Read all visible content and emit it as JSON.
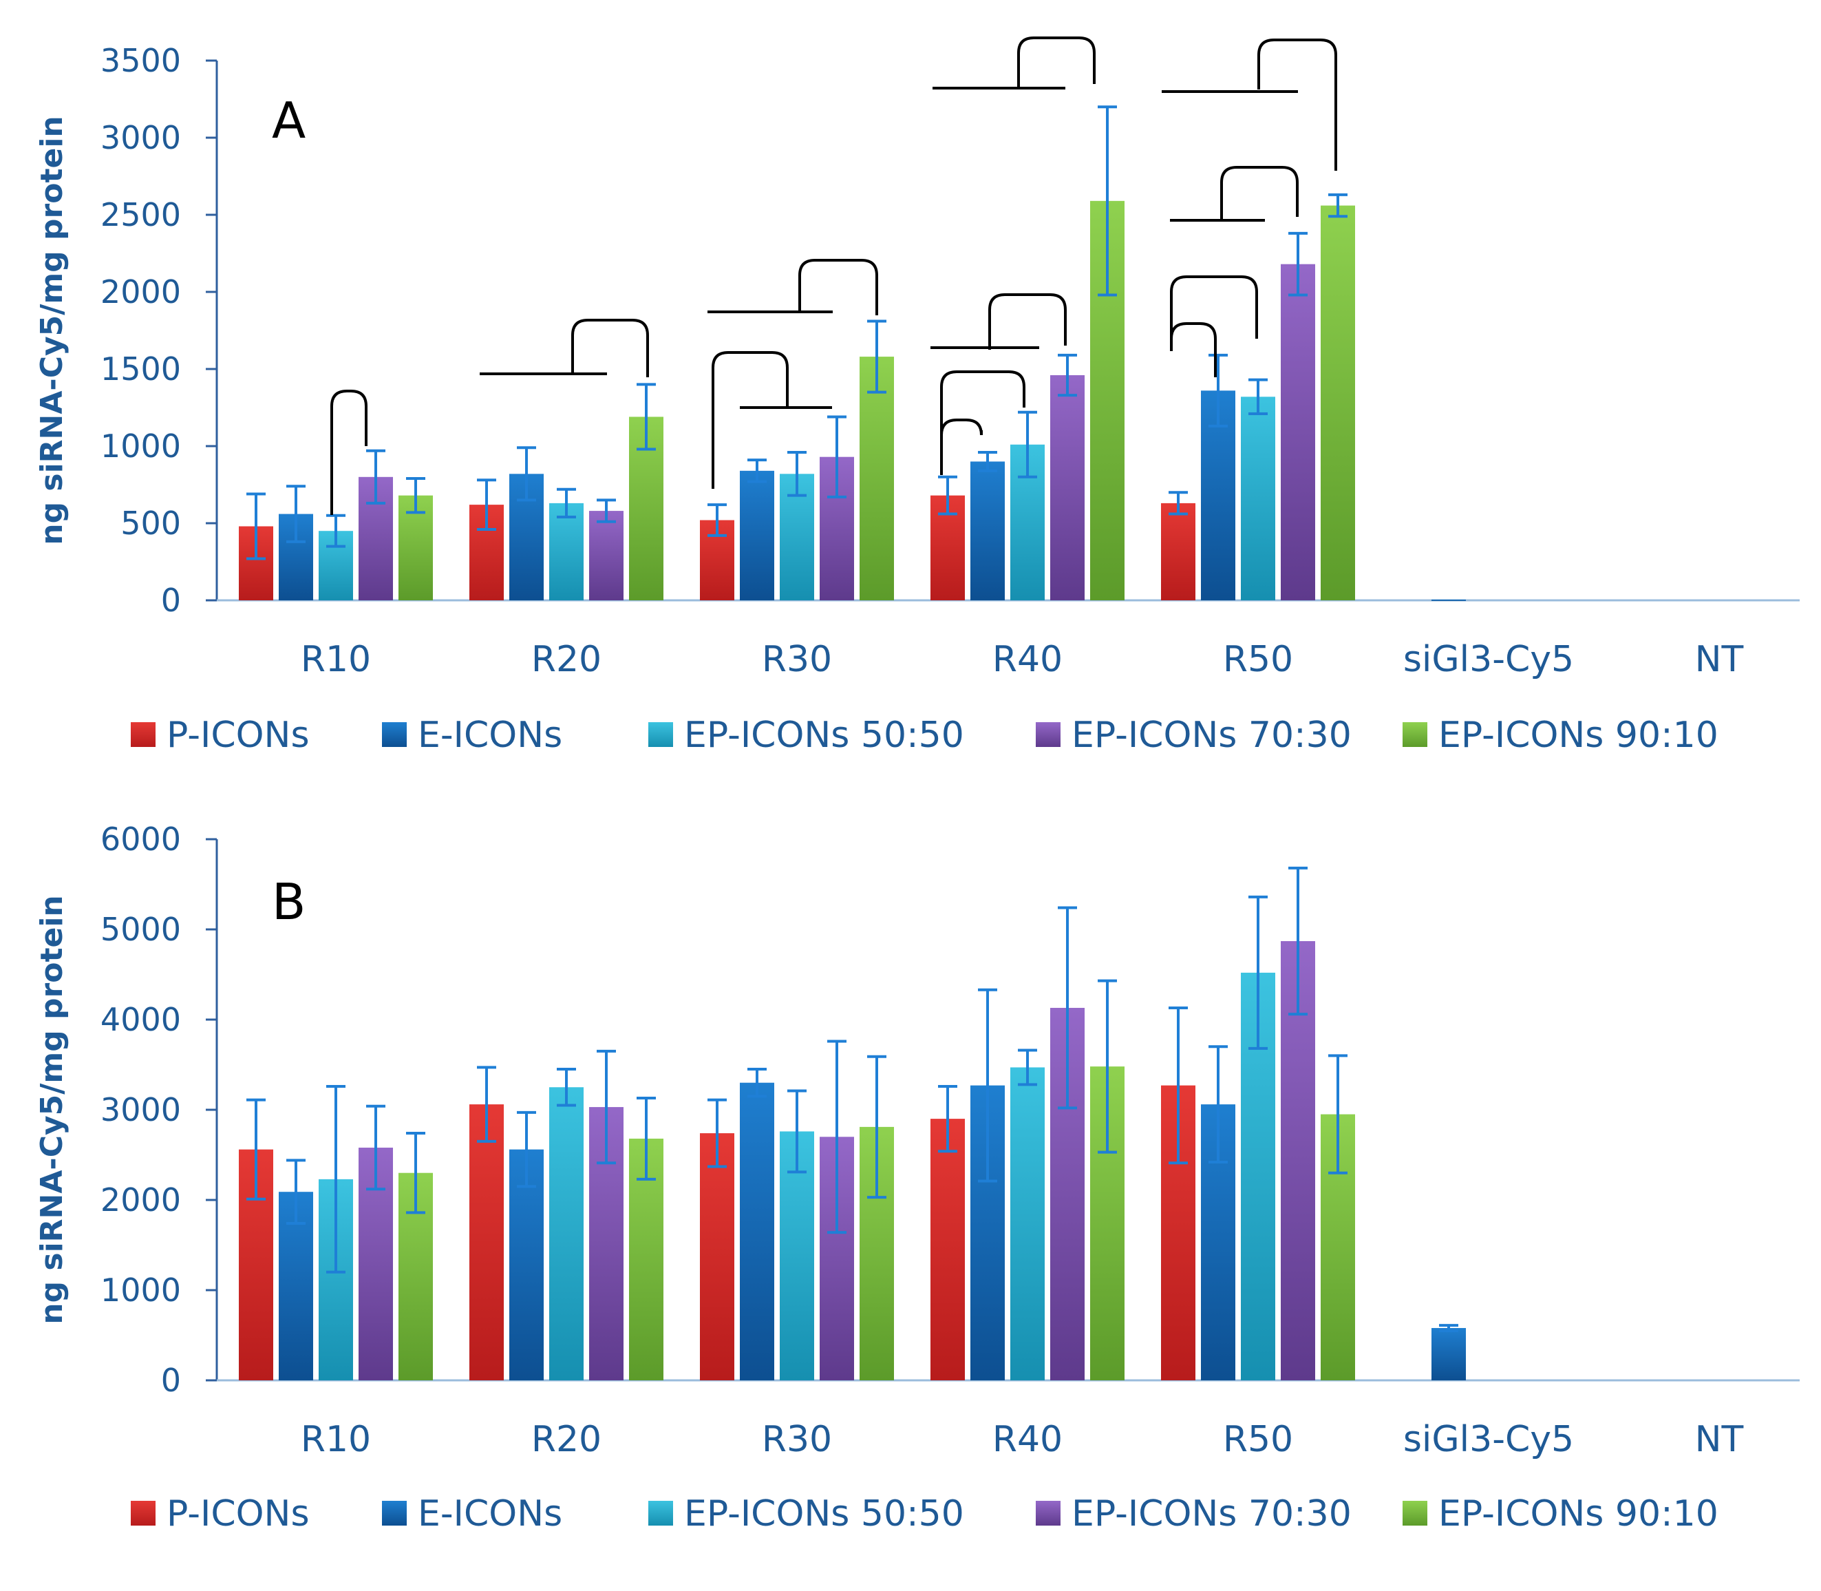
{
  "colors": {
    "text": "#1f5a96",
    "axis": "#2f5f9e",
    "baseline": "#9bbcdc",
    "error": "#1f7fd6",
    "bracket": "#000000",
    "series": {
      "P-ICONs": [
        "#e53935",
        "#b71c1c"
      ],
      "E-ICONs": [
        "#1f7fd0",
        "#0d4f91"
      ],
      "EP-ICONs 50:50": [
        "#3cc3e0",
        "#168fb0"
      ],
      "EP-ICONs 70:30": [
        "#9468c8",
        "#5e3a8c"
      ],
      "EP-ICONs 90:10": [
        "#8fd14f",
        "#5c9b2a"
      ]
    }
  },
  "chart_data": [
    {
      "type": "bar",
      "panel": "A",
      "ylabel": "ng siRNA-Cy5/mg protein",
      "ylim": [
        0,
        3500
      ],
      "yticks": [
        "0",
        "500",
        "1000",
        "1500",
        "2000",
        "2500",
        "3000",
        "3500"
      ],
      "categories": [
        "R10",
        "R20",
        "R30",
        "R40",
        "R50",
        "siGl3-Cy5",
        "NT"
      ],
      "series": [
        {
          "name": "P-ICONs",
          "values": [
            480,
            620,
            520,
            680,
            630,
            null,
            null
          ],
          "errors": [
            210,
            160,
            100,
            120,
            70,
            null,
            null
          ]
        },
        {
          "name": "E-ICONs",
          "values": [
            560,
            820,
            840,
            900,
            1360,
            5,
            null
          ],
          "errors": [
            180,
            170,
            70,
            60,
            230,
            null,
            null
          ]
        },
        {
          "name": "EP-ICONs 50:50",
          "values": [
            450,
            630,
            820,
            1010,
            1320,
            null,
            null
          ],
          "errors": [
            100,
            90,
            140,
            210,
            110,
            null,
            null
          ]
        },
        {
          "name": "EP-ICONs 70:30",
          "values": [
            800,
            580,
            930,
            1460,
            2180,
            null,
            null
          ],
          "errors": [
            170,
            70,
            260,
            130,
            200,
            null,
            null
          ]
        },
        {
          "name": "EP-ICONs 90:10",
          "values": [
            680,
            1190,
            1580,
            2590,
            2560,
            null,
            null
          ],
          "errors": [
            110,
            210,
            230,
            610,
            70,
            null,
            null
          ]
        }
      ],
      "legend": [
        "P-ICONs",
        "E-ICONs",
        "EP-ICONs 50:50",
        "EP-ICONs 70:30",
        "EP-ICONs 90:10"
      ],
      "significance": [
        {
          "category": "R10",
          "from": "EP-ICONs 50:50",
          "to": "EP-ICONs 70:30"
        },
        {
          "category": "R20",
          "from": "EP-ICONs 50:50",
          "to": "EP-ICONs 90:10"
        },
        {
          "category": "R30",
          "from": "EP-ICONs 50:50",
          "to": "EP-ICONs 90:10"
        },
        {
          "category": "R30",
          "from": "P-ICONs",
          "to": "E-ICONs"
        },
        {
          "category": "R40",
          "from": "P-ICONs",
          "to": "E-ICONs"
        },
        {
          "category": "R40",
          "from": "P-ICONs",
          "to": "EP-ICONs 50:50"
        },
        {
          "category": "R40",
          "from": "E-ICONs",
          "to": "EP-ICONs 70:30"
        },
        {
          "category": "R40",
          "from": "EP-ICONs 50:50",
          "to": "EP-ICONs 90:10"
        },
        {
          "category": "R50",
          "from": "P-ICONs",
          "to": "E-ICONs"
        },
        {
          "category": "R50",
          "from": "P-ICONs",
          "to": "EP-ICONs 50:50"
        },
        {
          "category": "R50",
          "from": "E-ICONs",
          "to": "EP-ICONs 70:30"
        },
        {
          "category": "R50",
          "from": "EP-ICONs 50:50",
          "to": "EP-ICONs 90:10"
        }
      ]
    },
    {
      "type": "bar",
      "panel": "B",
      "ylabel": "ng siRNA-Cy5/mg protein",
      "ylim": [
        0,
        6000
      ],
      "yticks": [
        "0",
        "1000",
        "2000",
        "3000",
        "4000",
        "5000",
        "6000"
      ],
      "categories": [
        "R10",
        "R20",
        "R30",
        "R40",
        "R50",
        "siGl3-Cy5",
        "NT"
      ],
      "series": [
        {
          "name": "P-ICONs",
          "values": [
            2560,
            3060,
            2740,
            2900,
            3270,
            null,
            null
          ],
          "errors": [
            550,
            410,
            370,
            360,
            860,
            null,
            null
          ]
        },
        {
          "name": "E-ICONs",
          "values": [
            2090,
            2560,
            3300,
            3270,
            3060,
            580,
            null
          ],
          "errors": [
            350,
            410,
            150,
            1060,
            640,
            30,
            null
          ]
        },
        {
          "name": "EP-ICONs 50:50",
          "values": [
            2230,
            3250,
            2760,
            3470,
            4520,
            null,
            null
          ],
          "errors": [
            1030,
            200,
            450,
            190,
            840,
            null,
            null
          ]
        },
        {
          "name": "EP-ICONs 70:30",
          "values": [
            2580,
            3030,
            2700,
            4130,
            4870,
            null,
            null
          ],
          "errors": [
            460,
            620,
            1060,
            1110,
            810,
            null,
            null
          ]
        },
        {
          "name": "EP-ICONs 90:10",
          "values": [
            2300,
            2680,
            2810,
            3480,
            2950,
            null,
            null
          ],
          "errors": [
            440,
            450,
            780,
            950,
            650,
            null,
            null
          ]
        }
      ],
      "legend": [
        "P-ICONs",
        "E-ICONs",
        "EP-ICONs 50:50",
        "EP-ICONs 70:30",
        "EP-ICONs 90:10"
      ]
    }
  ]
}
